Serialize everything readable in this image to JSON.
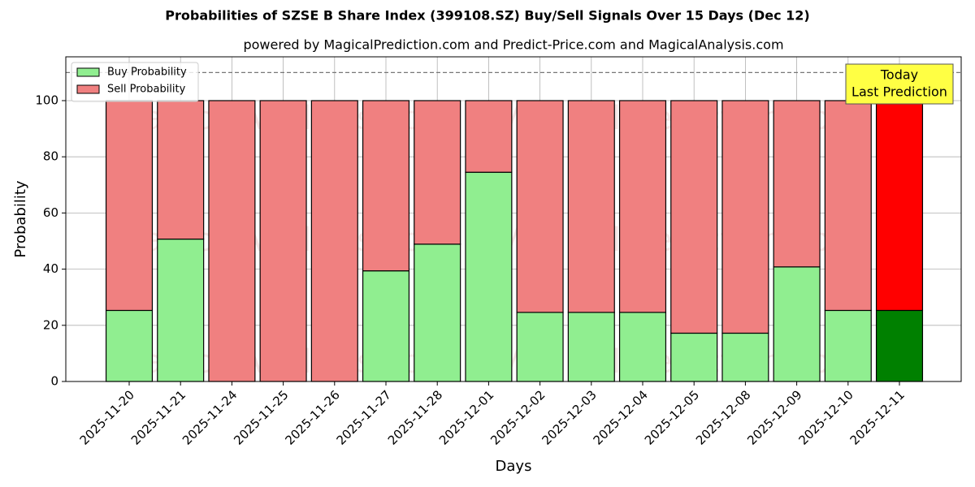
{
  "chart_data": {
    "type": "stacked_bar",
    "title": "Probabilities of SZSE B Share Index (399108.SZ) Buy/Sell Signals Over 15 Days (Dec 12)",
    "subtitle": "powered by MagicalPrediction.com and Predict-Price.com and MagicalAnalysis.com",
    "x_label": "Days",
    "y_label": "Probability",
    "categories": [
      "2025-11-20",
      "2025-11-21",
      "2025-11-24",
      "2025-11-25",
      "2025-11-26",
      "2025-11-27",
      "2025-11-28",
      "2025-12-01",
      "2025-12-02",
      "2025-12-03",
      "2025-12-04",
      "2025-12-05",
      "2025-12-08",
      "2025-12-09",
      "2025-12-10",
      "2025-12-11"
    ],
    "series": [
      {
        "name": "Buy Probability",
        "color": "#90ee90",
        "colors": [
          "#90ee90",
          "#90ee90",
          "#90ee90",
          "#90ee90",
          "#90ee90",
          "#90ee90",
          "#90ee90",
          "#90ee90",
          "#90ee90",
          "#90ee90",
          "#90ee90",
          "#90ee90",
          "#90ee90",
          "#90ee90",
          "#90ee90",
          "#008000"
        ],
        "values": [
          25.3,
          50.7,
          0,
          0,
          0,
          39.4,
          48.9,
          74.5,
          24.6,
          24.6,
          24.6,
          17.2,
          17.2,
          40.8,
          25.3,
          25.3
        ]
      },
      {
        "name": "Sell Probability",
        "color": "#f08080",
        "colors": [
          "#f08080",
          "#f08080",
          "#f08080",
          "#f08080",
          "#f08080",
          "#f08080",
          "#f08080",
          "#f08080",
          "#f08080",
          "#f08080",
          "#f08080",
          "#f08080",
          "#f08080",
          "#f08080",
          "#f08080",
          "#ff0000"
        ],
        "values": [
          74.7,
          49.3,
          100,
          100,
          100,
          60.6,
          51.1,
          25.5,
          75.4,
          75.4,
          75.4,
          82.8,
          82.8,
          59.2,
          74.7,
          74.7
        ]
      }
    ],
    "ylim": [
      0,
      115.6
    ],
    "yticks": [
      0,
      20,
      40,
      60,
      80,
      100
    ],
    "grid": true,
    "reference_line": 110,
    "legend": "upper left",
    "annotation_lines": [
      "Today",
      "Last Prediction"
    ],
    "watermarks": [
      "MagicalAnalysis.com",
      "MagicalPrediction.com"
    ]
  }
}
